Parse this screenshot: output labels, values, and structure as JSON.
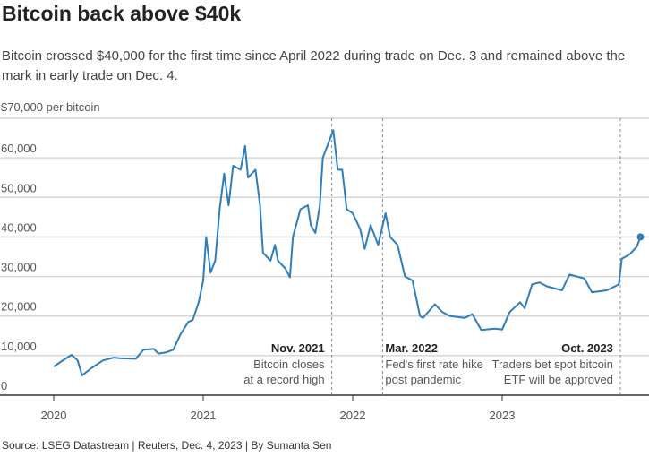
{
  "title": "Bitcoin back above $40k",
  "subtitle": "Bitcoin crossed $40,000 for the first time since April 2022 during trade on Dec. 3 and remained above the mark in early trade on Dec. 4.",
  "source": "Source: LSEG Datastream | Reuters, Dec. 4, 2023 | By Sumanta Sen",
  "colors": {
    "line": "#2f7ebc",
    "grid": "#d6d6d6",
    "annotation": "#888888"
  },
  "chart_data": {
    "type": "line",
    "ylabel": "$70,000 per bitcoin",
    "ylim": [
      0,
      70000
    ],
    "xlim": [
      2019.9,
      2023.95
    ],
    "yticks": [
      {
        "v": 0,
        "label": "0"
      },
      {
        "v": 10000,
        "label": "10,000"
      },
      {
        "v": 20000,
        "label": "20,000"
      },
      {
        "v": 30000,
        "label": "30,000"
      },
      {
        "v": 40000,
        "label": "40,000"
      },
      {
        "v": 50000,
        "label": "50,000"
      },
      {
        "v": 60000,
        "label": "60,000"
      }
    ],
    "xticks": [
      {
        "v": 2020,
        "label": "2020"
      },
      {
        "v": 2021,
        "label": "2021"
      },
      {
        "v": 2022,
        "label": "2022"
      },
      {
        "v": 2023,
        "label": "2023"
      }
    ],
    "grid": true,
    "series": [
      {
        "name": "Bitcoin price (USD)",
        "x": [
          2020.0,
          2020.05,
          2020.12,
          2020.16,
          2020.19,
          2020.25,
          2020.33,
          2020.4,
          2020.45,
          2020.55,
          2020.6,
          2020.67,
          2020.7,
          2020.75,
          2020.8,
          2020.85,
          2020.9,
          2020.93,
          2020.97,
          2021.0,
          2021.02,
          2021.05,
          2021.08,
          2021.11,
          2021.14,
          2021.17,
          2021.2,
          2021.25,
          2021.28,
          2021.3,
          2021.35,
          2021.38,
          2021.4,
          2021.45,
          2021.48,
          2021.5,
          2021.55,
          2021.58,
          2021.6,
          2021.65,
          2021.7,
          2021.72,
          2021.75,
          2021.78,
          2021.8,
          2021.84,
          2021.87,
          2021.9,
          2021.93,
          2021.96,
          2022.0,
          2022.05,
          2022.08,
          2022.12,
          2022.17,
          2022.22,
          2022.25,
          2022.3,
          2022.35,
          2022.4,
          2022.45,
          2022.47,
          2022.55,
          2022.6,
          2022.65,
          2022.75,
          2022.8,
          2022.86,
          2022.95,
          2023.0,
          2023.05,
          2023.12,
          2023.15,
          2023.2,
          2023.25,
          2023.3,
          2023.4,
          2023.45,
          2023.55,
          2023.6,
          2023.7,
          2023.78,
          2023.8,
          2023.85,
          2023.9,
          2023.925
        ],
        "y": [
          7200,
          8500,
          10200,
          8800,
          5000,
          6800,
          8800,
          9500,
          9300,
          9200,
          11500,
          11700,
          10500,
          10800,
          11500,
          15500,
          18500,
          19000,
          23500,
          29000,
          40000,
          31000,
          34000,
          47000,
          56000,
          48000,
          58000,
          57000,
          63000,
          55000,
          57000,
          48000,
          36000,
          34000,
          38000,
          34000,
          32000,
          29800,
          40000,
          47000,
          48000,
          43000,
          41000,
          48000,
          60000,
          64000,
          67000,
          57000,
          57000,
          47000,
          46000,
          42000,
          37000,
          43000,
          38000,
          46000,
          40000,
          38000,
          30000,
          29000,
          20000,
          19500,
          23000,
          21000,
          20000,
          19500,
          20500,
          16500,
          16800,
          16600,
          21000,
          23500,
          22000,
          28000,
          28500,
          27500,
          26500,
          30500,
          29500,
          26000,
          26500,
          28000,
          34500,
          35500,
          37500,
          40000
        ]
      }
    ],
    "annotations": [
      {
        "x": 2021.86,
        "title": "Nov. 2021",
        "lines": [
          "Bitcoin closes",
          "at a record high"
        ],
        "align": "right"
      },
      {
        "x": 2022.2,
        "title": "Mar. 2022",
        "lines": [
          "Fed's first rate hike",
          "post pandemic"
        ],
        "align": "left"
      },
      {
        "x": 2023.79,
        "title": "Oct. 2023",
        "lines": [
          "Traders bet spot bitcoin",
          "ETF will be approved"
        ],
        "align": "right"
      }
    ]
  }
}
